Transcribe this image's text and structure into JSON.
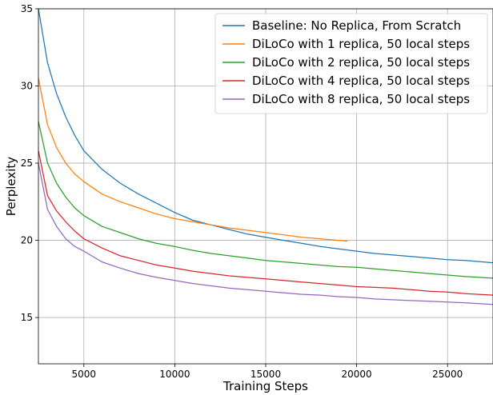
{
  "chart_data": {
    "type": "line",
    "title": "",
    "xlabel": "Training Steps",
    "ylabel": "Perplexity",
    "xlim": [
      2500,
      27500
    ],
    "ylim": [
      12,
      35
    ],
    "xticks": [
      5000,
      10000,
      15000,
      20000,
      25000
    ],
    "yticks": [
      15,
      20,
      25,
      30,
      35
    ],
    "grid": true,
    "legend_position": "top-right",
    "series": [
      {
        "name": "Baseline: No Replica, From Scratch",
        "color": "#1f77b4",
        "x": [
          2500,
          3000,
          3500,
          4000,
          4500,
          5000,
          6000,
          7000,
          8000,
          9000,
          10000,
          11000,
          12000,
          13000,
          14000,
          15000,
          16000,
          17000,
          18000,
          19000,
          20000,
          21000,
          22000,
          23000,
          24000,
          25000,
          26000,
          27500
        ],
        "y": [
          35.0,
          31.5,
          29.5,
          28.0,
          26.8,
          25.8,
          24.6,
          23.7,
          23.0,
          22.4,
          21.8,
          21.3,
          21.0,
          20.7,
          20.4,
          20.2,
          20.0,
          19.8,
          19.6,
          19.45,
          19.3,
          19.15,
          19.05,
          18.95,
          18.85,
          18.75,
          18.7,
          18.55
        ]
      },
      {
        "name": "DiLoCo with 1 replica, 50 local steps",
        "color": "#ff7f0e",
        "x": [
          2500,
          3000,
          3500,
          4000,
          4500,
          5000,
          6000,
          7000,
          8000,
          9000,
          10000,
          11000,
          12000,
          13000,
          14000,
          15000,
          16000,
          17000,
          18000,
          19000,
          19500
        ],
        "y": [
          30.5,
          27.5,
          26.0,
          25.0,
          24.3,
          23.8,
          23.0,
          22.5,
          22.1,
          21.7,
          21.4,
          21.2,
          21.0,
          20.8,
          20.65,
          20.5,
          20.35,
          20.2,
          20.1,
          20.0,
          19.95
        ]
      },
      {
        "name": "DiLoCo with 2 replica, 50 local steps",
        "color": "#2ca02c",
        "x": [
          2500,
          3000,
          3500,
          4000,
          4500,
          5000,
          6000,
          7000,
          8000,
          9000,
          10000,
          11000,
          12000,
          13000,
          14000,
          15000,
          16000,
          17000,
          18000,
          19000,
          20000,
          21000,
          22000,
          23000,
          24000,
          25000,
          26000,
          27500
        ],
        "y": [
          27.7,
          25.0,
          23.7,
          22.8,
          22.1,
          21.6,
          20.9,
          20.5,
          20.1,
          19.8,
          19.6,
          19.35,
          19.15,
          19.0,
          18.85,
          18.7,
          18.6,
          18.5,
          18.4,
          18.3,
          18.25,
          18.15,
          18.05,
          17.95,
          17.85,
          17.75,
          17.65,
          17.55
        ]
      },
      {
        "name": "DiLoCo with 4 replica, 50 local steps",
        "color": "#d62728",
        "x": [
          2500,
          3000,
          3500,
          4000,
          4500,
          5000,
          6000,
          7000,
          8000,
          9000,
          10000,
          11000,
          12000,
          13000,
          14000,
          15000,
          16000,
          17000,
          18000,
          19000,
          20000,
          21000,
          22000,
          23000,
          24000,
          25000,
          26000,
          27500
        ],
        "y": [
          25.8,
          22.9,
          21.9,
          21.2,
          20.6,
          20.1,
          19.5,
          19.0,
          18.7,
          18.4,
          18.2,
          18.0,
          17.85,
          17.7,
          17.6,
          17.5,
          17.4,
          17.3,
          17.2,
          17.1,
          17.0,
          16.95,
          16.9,
          16.8,
          16.7,
          16.65,
          16.55,
          16.45
        ]
      },
      {
        "name": "DiLoCo with 8 replica, 50 local steps",
        "color": "#9467bd",
        "x": [
          2500,
          3000,
          3500,
          4000,
          4500,
          5000,
          6000,
          7000,
          8000,
          9000,
          10000,
          11000,
          12000,
          13000,
          14000,
          15000,
          16000,
          17000,
          18000,
          19000,
          20000,
          21000,
          22000,
          23000,
          24000,
          25000,
          26000,
          27500
        ],
        "y": [
          25.0,
          22.0,
          20.9,
          20.1,
          19.6,
          19.3,
          18.6,
          18.2,
          17.85,
          17.6,
          17.4,
          17.2,
          17.05,
          16.9,
          16.8,
          16.7,
          16.6,
          16.5,
          16.45,
          16.35,
          16.3,
          16.2,
          16.15,
          16.1,
          16.05,
          16.0,
          15.95,
          15.85
        ]
      }
    ]
  }
}
